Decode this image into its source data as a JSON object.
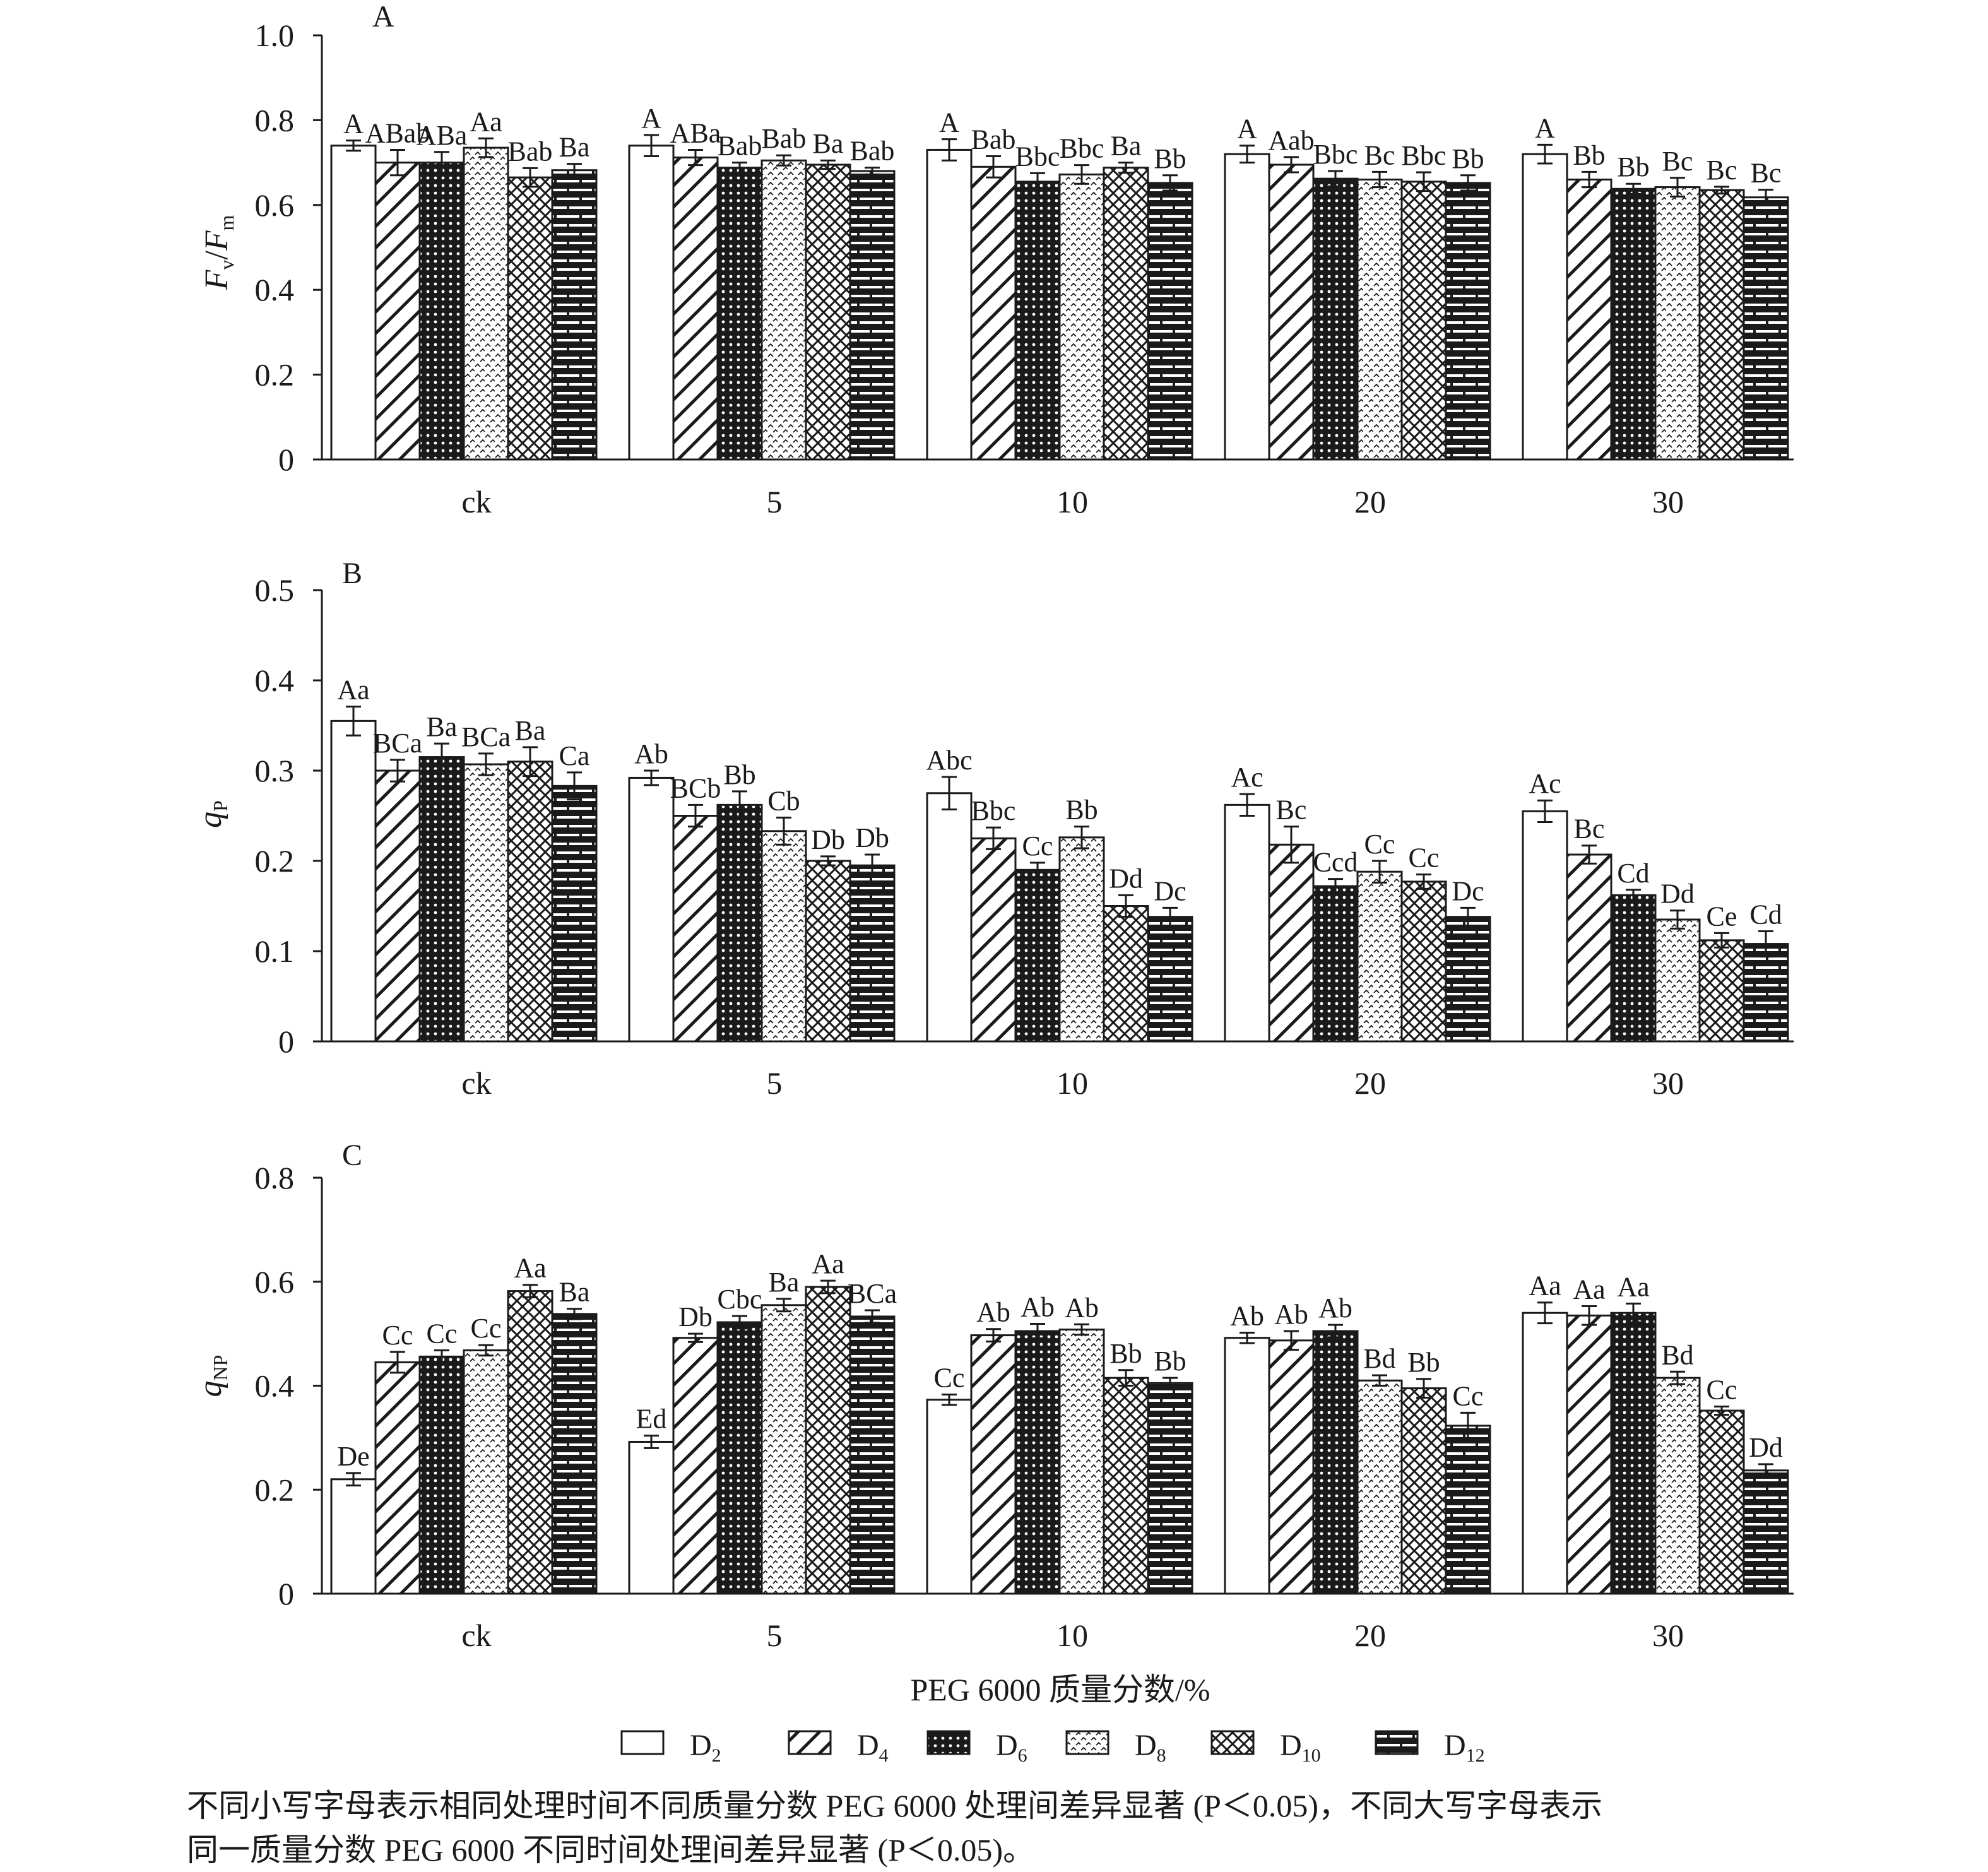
{
  "chart_data": [
    {
      "type": "bar",
      "panel": "A",
      "ylabel": "Fv/Fm",
      "ylabel_parts": {
        "main1": "F",
        "sub1": "v",
        "sep": "/",
        "main2": "F",
        "sub2": "m"
      },
      "ylim": [
        0,
        1.0
      ],
      "yticks": [
        0,
        0.2,
        0.4,
        0.6,
        0.8,
        1.0
      ],
      "ytick_labels": [
        "0",
        "0.2",
        "0.4",
        "0.6",
        "0.8",
        "1.0"
      ],
      "categories": [
        "ck",
        "5",
        "10",
        "20",
        "30"
      ],
      "series": [
        {
          "name": "D2",
          "values": [
            0.74,
            0.74,
            0.73,
            0.72,
            0.72
          ],
          "errors": [
            0.012,
            0.025,
            0.025,
            0.02,
            0.022
          ],
          "labels": [
            "A",
            "A",
            "A",
            "A",
            "A"
          ]
        },
        {
          "name": "D4",
          "values": [
            0.7,
            0.712,
            0.69,
            0.695,
            0.66
          ],
          "errors": [
            0.03,
            0.018,
            0.025,
            0.018,
            0.018
          ],
          "labels": [
            "ABab",
            "ABa",
            "Bab",
            "Aab",
            "Bb"
          ]
        },
        {
          "name": "D6",
          "values": [
            0.7,
            0.688,
            0.655,
            0.662,
            0.638
          ],
          "errors": [
            0.025,
            0.012,
            0.02,
            0.018,
            0.012
          ],
          "labels": [
            "ABa",
            "Bab",
            "Bbc",
            "Bbc",
            "Bb"
          ]
        },
        {
          "name": "D8",
          "values": [
            0.735,
            0.705,
            0.672,
            0.66,
            0.642
          ],
          "errors": [
            0.022,
            0.012,
            0.022,
            0.018,
            0.022
          ],
          "labels": [
            "Aa",
            "Bab",
            "Bbc",
            "Bc",
            "Bc"
          ]
        },
        {
          "name": "D10",
          "values": [
            0.665,
            0.695,
            0.688,
            0.655,
            0.635
          ],
          "errors": [
            0.022,
            0.01,
            0.012,
            0.022,
            0.008
          ],
          "labels": [
            "Bab",
            "Ba",
            "Ba",
            "Bbc",
            "Bc"
          ]
        },
        {
          "name": "D12",
          "values": [
            0.682,
            0.68,
            0.652,
            0.652,
            0.618
          ],
          "errors": [
            0.015,
            0.008,
            0.018,
            0.018,
            0.018
          ],
          "labels": [
            "Ba",
            "Bab",
            "Bb",
            "Bb",
            "Bc"
          ]
        }
      ]
    },
    {
      "type": "bar",
      "panel": "B",
      "ylabel": "qP",
      "ylabel_parts": {
        "main1": "q",
        "sub1": "P"
      },
      "ylim": [
        0,
        0.5
      ],
      "yticks": [
        0,
        0.1,
        0.2,
        0.3,
        0.4,
        0.5
      ],
      "ytick_labels": [
        "0",
        "0.1",
        "0.2",
        "0.3",
        "0.4",
        "0.5"
      ],
      "categories": [
        "ck",
        "5",
        "10",
        "20",
        "30"
      ],
      "series": [
        {
          "name": "D2",
          "values": [
            0.355,
            0.292,
            0.275,
            0.262,
            0.255
          ],
          "errors": [
            0.016,
            0.008,
            0.018,
            0.012,
            0.012
          ],
          "labels": [
            "Aa",
            "Ab",
            "Abc",
            "Ac",
            "Ac"
          ]
        },
        {
          "name": "D4",
          "values": [
            0.3,
            0.25,
            0.225,
            0.218,
            0.207
          ],
          "errors": [
            0.012,
            0.012,
            0.012,
            0.02,
            0.01
          ],
          "labels": [
            "BCa",
            "BCb",
            "Bbc",
            "Bc",
            "Bc"
          ]
        },
        {
          "name": "D6",
          "values": [
            0.315,
            0.262,
            0.19,
            0.172,
            0.162
          ],
          "errors": [
            0.015,
            0.015,
            0.008,
            0.008,
            0.006
          ],
          "labels": [
            "Ba",
            "Bb",
            "Cc",
            "Ccd",
            "Cd"
          ]
        },
        {
          "name": "D8",
          "values": [
            0.307,
            0.233,
            0.226,
            0.188,
            0.135
          ],
          "errors": [
            0.012,
            0.015,
            0.012,
            0.012,
            0.01
          ],
          "labels": [
            "BCa",
            "Cb",
            "Bb",
            "Cc",
            "Dd"
          ]
        },
        {
          "name": "D10",
          "values": [
            0.31,
            0.2,
            0.15,
            0.177,
            0.112
          ],
          "errors": [
            0.016,
            0.005,
            0.012,
            0.008,
            0.008
          ],
          "labels": [
            "Ba",
            "Db",
            "Dd",
            "Cc",
            "Ce"
          ]
        },
        {
          "name": "D12",
          "values": [
            0.283,
            0.195,
            0.138,
            0.138,
            0.108
          ],
          "errors": [
            0.015,
            0.012,
            0.01,
            0.01,
            0.014
          ],
          "labels": [
            "Ca",
            "Db",
            "Dc",
            "Dc",
            "Cd"
          ]
        }
      ]
    },
    {
      "type": "bar",
      "panel": "C",
      "ylabel": "qNP",
      "ylabel_parts": {
        "main1": "q",
        "sub1": "NP"
      },
      "ylim": [
        0,
        0.8
      ],
      "yticks": [
        0,
        0.2,
        0.4,
        0.6,
        0.8
      ],
      "ytick_labels": [
        "0",
        "0.2",
        "0.4",
        "0.6",
        "0.8"
      ],
      "categories": [
        "ck",
        "5",
        "10",
        "20",
        "30"
      ],
      "xlabel": "PEG 6000 质量分数/%",
      "series": [
        {
          "name": "D2",
          "values": [
            0.22,
            0.292,
            0.373,
            0.492,
            0.54
          ],
          "errors": [
            0.012,
            0.012,
            0.01,
            0.01,
            0.02
          ],
          "labels": [
            "De",
            "Ed",
            "Cc",
            "Ab",
            "Aa"
          ]
        },
        {
          "name": "D4",
          "values": [
            0.445,
            0.492,
            0.497,
            0.487,
            0.535
          ],
          "errors": [
            0.02,
            0.008,
            0.012,
            0.018,
            0.018
          ],
          "labels": [
            "Cc",
            "Db",
            "Ab",
            "Ab",
            "Aa"
          ]
        },
        {
          "name": "D6",
          "values": [
            0.456,
            0.522,
            0.505,
            0.505,
            0.54
          ],
          "errors": [
            0.012,
            0.012,
            0.014,
            0.012,
            0.018
          ],
          "labels": [
            "Cc",
            "Cbc",
            "Ab",
            "Ab",
            "Aa"
          ]
        },
        {
          "name": "D8",
          "values": [
            0.468,
            0.555,
            0.508,
            0.41,
            0.415
          ],
          "errors": [
            0.01,
            0.012,
            0.01,
            0.01,
            0.012
          ],
          "labels": [
            "Cc",
            "Ba",
            "Ab",
            "Bd",
            "Bd"
          ]
        },
        {
          "name": "D10",
          "values": [
            0.582,
            0.59,
            0.415,
            0.395,
            0.352
          ],
          "errors": [
            0.012,
            0.012,
            0.015,
            0.018,
            0.008
          ],
          "labels": [
            "Aa",
            "Aa",
            "Bb",
            "Bb",
            "Cc"
          ]
        },
        {
          "name": "D12",
          "values": [
            0.538,
            0.533,
            0.405,
            0.323,
            0.237
          ],
          "errors": [
            0.01,
            0.012,
            0.01,
            0.025,
            0.012
          ],
          "labels": [
            "Ba",
            "BCa",
            "Bb",
            "Cc",
            "Dd"
          ]
        }
      ]
    }
  ],
  "legend": [
    {
      "main": "D",
      "sub": "2"
    },
    {
      "main": "D",
      "sub": "4"
    },
    {
      "main": "D",
      "sub": "6"
    },
    {
      "main": "D",
      "sub": "8"
    },
    {
      "main": "D",
      "sub": "10"
    },
    {
      "main": "D",
      "sub": "12"
    }
  ],
  "caption": {
    "line1": "不同小写字母表示相同处理时间不同质量分数 PEG 6000 处理间差异显著 (P＜0.05)，不同大写字母表示",
    "line2": "同一质量分数 PEG 6000 不同时间处理间差异显著 (P＜0.05)。"
  }
}
